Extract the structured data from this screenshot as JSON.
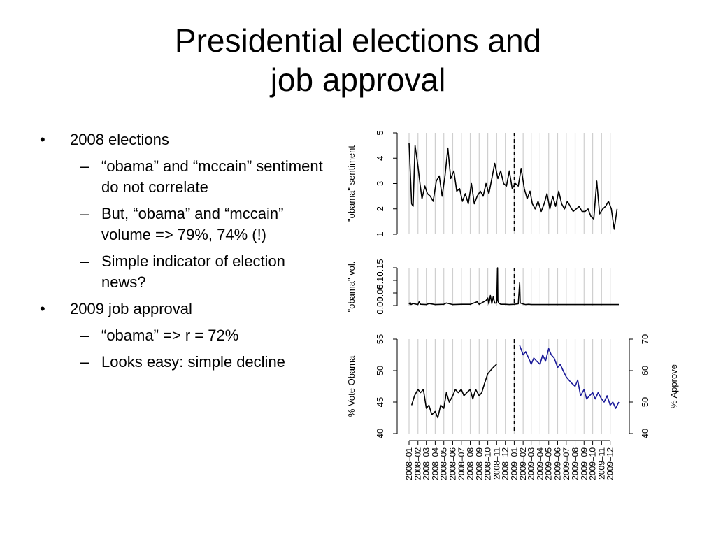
{
  "slide": {
    "title_line1": "Presidential elections and",
    "title_line2": "job approval",
    "bullets": [
      {
        "text": "2008 elections",
        "subs": [
          "“obama” and “mccain” sentiment do not correlate",
          "But, “obama” and “mccain” volume => 79%, 74% (!)",
          "Simple indicator of election news?"
        ]
      },
      {
        "text": "2009 job approval",
        "subs": [
          "“obama” => r = 72%",
          "Looks easy: simple decline"
        ]
      }
    ],
    "bullet_mark": "•",
    "sub_mark": "–"
  },
  "chart_data": [
    {
      "type": "line",
      "ylabel": "\"obama\" sentiment",
      "ylim": [
        1,
        5
      ],
      "yticks": [
        "1",
        "2",
        "3",
        "4",
        "5"
      ],
      "color": "#000000",
      "series": [
        {
          "x": [
            "2008-01-01",
            "2008-01-10",
            "2008-01-15",
            "2008-01-22",
            "2008-02-01",
            "2008-02-08",
            "2008-02-15",
            "2008-02-25",
            "2008-03-05",
            "2008-03-15",
            "2008-03-25",
            "2008-04-05",
            "2008-04-15",
            "2008-04-25",
            "2008-05-05",
            "2008-05-15",
            "2008-05-25",
            "2008-06-05",
            "2008-06-15",
            "2008-06-25",
            "2008-07-05",
            "2008-07-15",
            "2008-07-25",
            "2008-08-05",
            "2008-08-15",
            "2008-08-25",
            "2008-09-05",
            "2008-09-15",
            "2008-09-25",
            "2008-10-05",
            "2008-10-15",
            "2008-10-25",
            "2008-11-05",
            "2008-11-15",
            "2008-11-25",
            "2008-12-05",
            "2008-12-15",
            "2008-12-25",
            "2009-01-05",
            "2009-01-15",
            "2009-01-25",
            "2009-02-05",
            "2009-02-15",
            "2009-02-25",
            "2009-03-05",
            "2009-03-15",
            "2009-03-25",
            "2009-04-05",
            "2009-04-15",
            "2009-04-25",
            "2009-05-05",
            "2009-05-15",
            "2009-05-25",
            "2009-06-05",
            "2009-06-15",
            "2009-06-25",
            "2009-07-05",
            "2009-07-15",
            "2009-07-25",
            "2009-08-05",
            "2009-08-15",
            "2009-08-25",
            "2009-09-05",
            "2009-09-15",
            "2009-09-25",
            "2009-10-05",
            "2009-10-15",
            "2009-10-25",
            "2009-11-05",
            "2009-11-15",
            "2009-11-25",
            "2009-12-05",
            "2009-12-15",
            "2009-12-25"
          ],
          "y": [
            4.6,
            2.2,
            2.1,
            4.5,
            3.7,
            3.0,
            2.4,
            2.9,
            2.6,
            2.5,
            2.3,
            3.1,
            3.3,
            2.5,
            3.3,
            4.4,
            3.2,
            3.5,
            2.7,
            2.8,
            2.3,
            2.6,
            2.2,
            3.0,
            2.2,
            2.5,
            2.7,
            2.5,
            3.0,
            2.6,
            3.2,
            3.8,
            3.2,
            3.5,
            3.0,
            2.9,
            3.5,
            2.8,
            3.0,
            2.9,
            3.6,
            2.8,
            2.4,
            2.7,
            2.2,
            2.0,
            2.3,
            1.9,
            2.2,
            2.6,
            2.0,
            2.5,
            2.1,
            2.7,
            2.2,
            2.0,
            2.3,
            2.1,
            1.9,
            2.0,
            2.1,
            1.9,
            1.9,
            2.0,
            1.7,
            1.6,
            3.1,
            1.8,
            2.0,
            2.1,
            2.3,
            2.0,
            1.2,
            2.0
          ]
        }
      ]
    },
    {
      "type": "line",
      "ylabel": "\"obama\" vol.",
      "ylim": [
        0,
        0.15
      ],
      "yticks": [
        "0.00",
        "0.05",
        "0.10",
        "0.15"
      ],
      "color": "#000000",
      "series": [
        {
          "x": [
            "2008-01-01",
            "2008-01-05",
            "2008-01-08",
            "2008-01-15",
            "2008-02-01",
            "2008-02-05",
            "2008-02-10",
            "2008-03-01",
            "2008-03-10",
            "2008-04-01",
            "2008-05-01",
            "2008-05-10",
            "2008-06-01",
            "2008-07-01",
            "2008-08-01",
            "2008-08-25",
            "2008-09-01",
            "2008-09-25",
            "2008-10-01",
            "2008-10-05",
            "2008-10-10",
            "2008-10-15",
            "2008-10-20",
            "2008-10-25",
            "2008-11-01",
            "2008-11-04",
            "2008-11-05",
            "2008-11-08",
            "2008-11-15",
            "2008-12-01",
            "2008-12-15",
            "2009-01-01",
            "2009-01-15",
            "2009-01-20",
            "2009-01-22",
            "2009-02-01",
            "2009-02-10",
            "2009-02-20",
            "2009-03-01",
            "2009-04-01",
            "2009-05-01",
            "2009-06-01",
            "2009-07-01",
            "2009-08-01",
            "2009-09-01",
            "2009-10-01",
            "2009-11-01",
            "2009-12-01",
            "2009-12-31"
          ],
          "y": [
            0.005,
            0.012,
            0.004,
            0.008,
            0.004,
            0.015,
            0.005,
            0.004,
            0.008,
            0.004,
            0.005,
            0.01,
            0.004,
            0.005,
            0.005,
            0.015,
            0.005,
            0.02,
            0.03,
            0.006,
            0.04,
            0.008,
            0.035,
            0.01,
            0.01,
            0.15,
            0.02,
            0.01,
            0.005,
            0.005,
            0.004,
            0.005,
            0.007,
            0.09,
            0.01,
            0.006,
            0.004,
            0.005,
            0.004,
            0.004,
            0.004,
            0.004,
            0.004,
            0.004,
            0.004,
            0.004,
            0.004,
            0.004,
            0.004
          ]
        }
      ]
    },
    {
      "type": "line",
      "ylabel": "% Vote Obama",
      "ylim": [
        40,
        55
      ],
      "yticks": [
        "40",
        "45",
        "50",
        "55"
      ],
      "y2label": "% Approve",
      "y2lim": [
        40,
        70
      ],
      "y2ticks": [
        "40",
        "50",
        "60",
        "70"
      ],
      "xlabels": [
        "2008–01",
        "2008–02",
        "2008–03",
        "2008–04",
        "2008–05",
        "2008–06",
        "2008–07",
        "2008–08",
        "2008–09",
        "2008–10",
        "2008–11",
        "2008–12",
        "2009–01",
        "2009–02",
        "2009–03",
        "2009–04",
        "2009–05",
        "2009–06",
        "2009–07",
        "2009–08",
        "2009–09",
        "2009–10",
        "2009–11",
        "2009–12"
      ],
      "series": [
        {
          "axis": "left",
          "color": "#000000",
          "x": [
            "2008-01-10",
            "2008-01-20",
            "2008-02-01",
            "2008-02-10",
            "2008-02-20",
            "2008-03-01",
            "2008-03-10",
            "2008-03-20",
            "2008-04-01",
            "2008-04-10",
            "2008-04-20",
            "2008-05-01",
            "2008-05-10",
            "2008-05-20",
            "2008-06-01",
            "2008-06-10",
            "2008-06-20",
            "2008-07-01",
            "2008-07-10",
            "2008-07-20",
            "2008-08-01",
            "2008-08-10",
            "2008-08-20",
            "2008-09-01",
            "2008-09-10",
            "2008-09-20",
            "2008-10-01",
            "2008-10-10",
            "2008-10-20",
            "2008-11-01"
          ],
          "y": [
            44.5,
            46,
            47,
            46.5,
            47,
            44,
            44.5,
            43,
            43.5,
            42.5,
            44.5,
            44,
            46.5,
            45,
            46,
            47,
            46.5,
            47,
            46,
            46.5,
            47,
            45.5,
            47,
            46,
            46.5,
            48,
            49.5,
            50,
            50.5,
            51
          ]
        },
        {
          "axis": "right",
          "color": "#1a1a99",
          "x": [
            "2009-01-20",
            "2009-02-01",
            "2009-02-10",
            "2009-02-20",
            "2009-03-01",
            "2009-03-10",
            "2009-03-20",
            "2009-04-01",
            "2009-04-10",
            "2009-04-20",
            "2009-05-01",
            "2009-05-10",
            "2009-05-20",
            "2009-06-01",
            "2009-06-10",
            "2009-06-20",
            "2009-07-01",
            "2009-07-10",
            "2009-07-20",
            "2009-08-01",
            "2009-08-10",
            "2009-08-20",
            "2009-09-01",
            "2009-09-10",
            "2009-09-20",
            "2009-10-01",
            "2009-10-10",
            "2009-10-20",
            "2009-11-01",
            "2009-11-10",
            "2009-11-20",
            "2009-12-01",
            "2009-12-10",
            "2009-12-20",
            "2009-12-31"
          ],
          "y": [
            68,
            65,
            66,
            64,
            62,
            64,
            63,
            62,
            65,
            63,
            67,
            65,
            64,
            61,
            62,
            60,
            58,
            57,
            56,
            55,
            57,
            52,
            54,
            51,
            52,
            53,
            51,
            53,
            51,
            50,
            52,
            49,
            50,
            48,
            50
          ]
        }
      ]
    }
  ]
}
